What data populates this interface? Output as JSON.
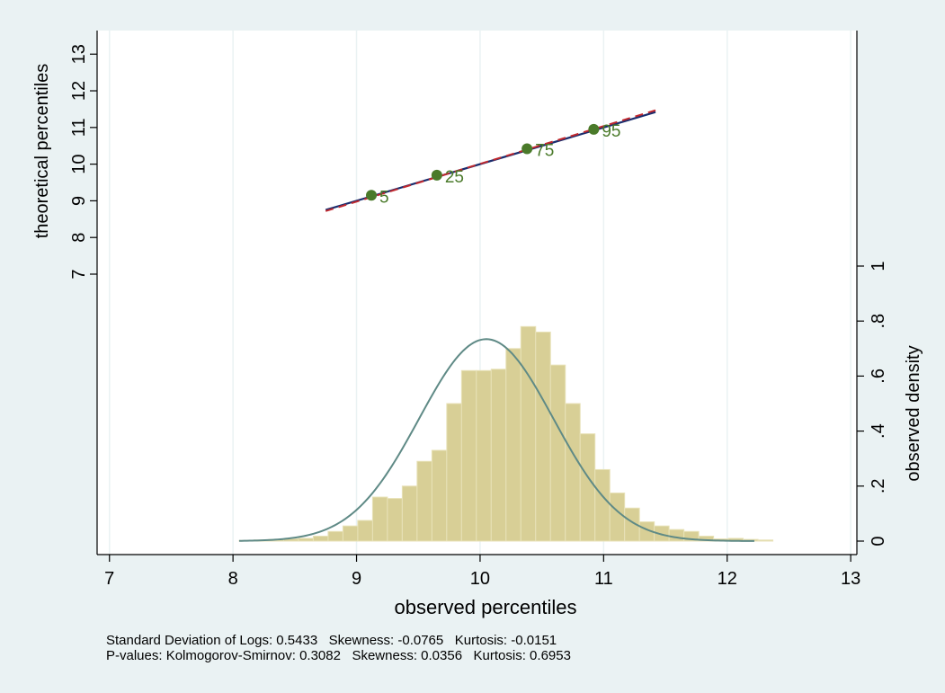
{
  "colors": {
    "background": "#eaf2f3",
    "plot_area": "#ffffff",
    "gridline": "#eaf2f3",
    "bar_fill": "#d8cf96",
    "bar_stroke": "#e8e2b8",
    "density_curve": "#5f8a86",
    "fit_solid": "#1a2d6e",
    "fit_dashed": "#c0282e",
    "percentile_marker": "#4a7a2a",
    "percentile_label": "#4a7a2a"
  },
  "chart_data": {
    "type": "bar",
    "description_source": "lognormal diagnostic composite",
    "xlabel": "observed percentiles",
    "ylabel_left": "theoretical percentiles",
    "ylabel_right": "observed density",
    "x_ticks": [
      7,
      8,
      9,
      10,
      11,
      12,
      13
    ],
    "xlim": [
      6.9,
      13.05
    ],
    "y_left_ticks": [
      7,
      8,
      9,
      10,
      11,
      12,
      13
    ],
    "y_left_range": [
      7,
      13.3
    ],
    "y_right_ticks": [
      {
        "value": 0,
        "label": "0"
      },
      {
        "value": 0.2,
        "label": ".2"
      },
      {
        "value": 0.4,
        "label": ".4"
      },
      {
        "value": 0.6,
        "label": ".6"
      },
      {
        "value": 0.8,
        "label": ".8"
      },
      {
        "value": 1,
        "label": "1"
      }
    ],
    "y_right_range": [
      0,
      1
    ],
    "grid": true,
    "histogram": {
      "bin_width": 0.12,
      "x_start": 8.05,
      "density": [
        0.002,
        0.004,
        0.006,
        0.008,
        0.01,
        0.018,
        0.035,
        0.055,
        0.075,
        0.16,
        0.155,
        0.2,
        0.29,
        0.33,
        0.5,
        0.62,
        0.62,
        0.625,
        0.7,
        0.78,
        0.76,
        0.64,
        0.5,
        0.39,
        0.26,
        0.175,
        0.12,
        0.07,
        0.055,
        0.042,
        0.035,
        0.018,
        0.008,
        0.01,
        0.006,
        0.004
      ]
    },
    "density_curve": {
      "mean": 10.05,
      "sd": 0.5433,
      "x_range": [
        8.05,
        12.22
      ]
    },
    "fitted_line": {
      "x": [
        8.75,
        11.42
      ],
      "y": [
        8.75,
        11.42
      ]
    },
    "reference_line": {
      "x": [
        8.75,
        11.42
      ],
      "y": [
        8.72,
        11.47
      ]
    },
    "percentile_points": [
      {
        "x": 9.12,
        "y": 9.15,
        "label": "5"
      },
      {
        "x": 9.65,
        "y": 9.7,
        "label": "25"
      },
      {
        "x": 10.38,
        "y": 10.42,
        "label": "75"
      },
      {
        "x": 10.92,
        "y": 10.95,
        "label": "95"
      }
    ]
  },
  "notes": {
    "line1": "Standard Deviation of Logs: 0.5433   Skewness: -0.0765   Kurtosis: -0.0151",
    "line2": "P-values: Kolmogorov-Smirnov: 0.3082   Skewness: 0.0356   Kurtosis: 0.6953"
  }
}
